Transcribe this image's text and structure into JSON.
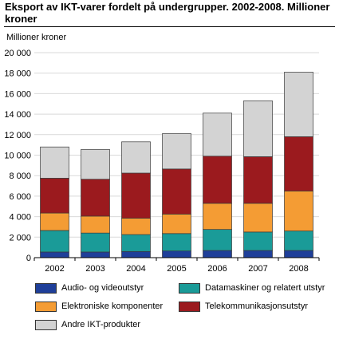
{
  "title": "Eksport av IKT-varer fordelt på undergrupper. 2002-2008. Millioner kroner",
  "chart_data": {
    "type": "bar",
    "stacked": true,
    "title": "Eksport av IKT-varer fordelt på undergrupper. 2002-2008. Millioner kroner",
    "ylabel": "Millioner kroner",
    "xlabel": "",
    "ylim": [
      0,
      20000
    ],
    "yticks": [
      0,
      2000,
      4000,
      6000,
      8000,
      10000,
      12000,
      14000,
      16000,
      18000,
      20000
    ],
    "ytick_labels": [
      "0",
      "2 000",
      "4 000",
      "6 000",
      "8 000",
      "10 000",
      "12 000",
      "14 000",
      "16 000",
      "18 000",
      "20 000"
    ],
    "grid": true,
    "legend_position": "bottom",
    "categories": [
      "2002",
      "2003",
      "2004",
      "2005",
      "2006",
      "2007",
      "2008"
    ],
    "series": [
      {
        "name": "Audio- og videoutstyr",
        "color": "#1f3f99",
        "values": [
          550,
          550,
          600,
          650,
          700,
          700,
          700
        ]
      },
      {
        "name": "Datamaskiner og relatert utstyr",
        "color": "#1a9b98",
        "values": [
          2100,
          1850,
          1650,
          1700,
          2050,
          1800,
          1900
        ]
      },
      {
        "name": "Elektroniske komponenter",
        "color": "#f49c34",
        "values": [
          1700,
          1650,
          1600,
          1900,
          2550,
          2800,
          3900
        ]
      },
      {
        "name": "Telekommunikasjonsutstyr",
        "color": "#9b1a1e",
        "values": [
          3400,
          3600,
          4400,
          4400,
          4600,
          4550,
          5300
        ]
      },
      {
        "name": "Andre IKT-produkter",
        "color": "#d3d3d3",
        "values": [
          3050,
          2900,
          3050,
          3450,
          4200,
          5450,
          6300
        ]
      }
    ]
  }
}
